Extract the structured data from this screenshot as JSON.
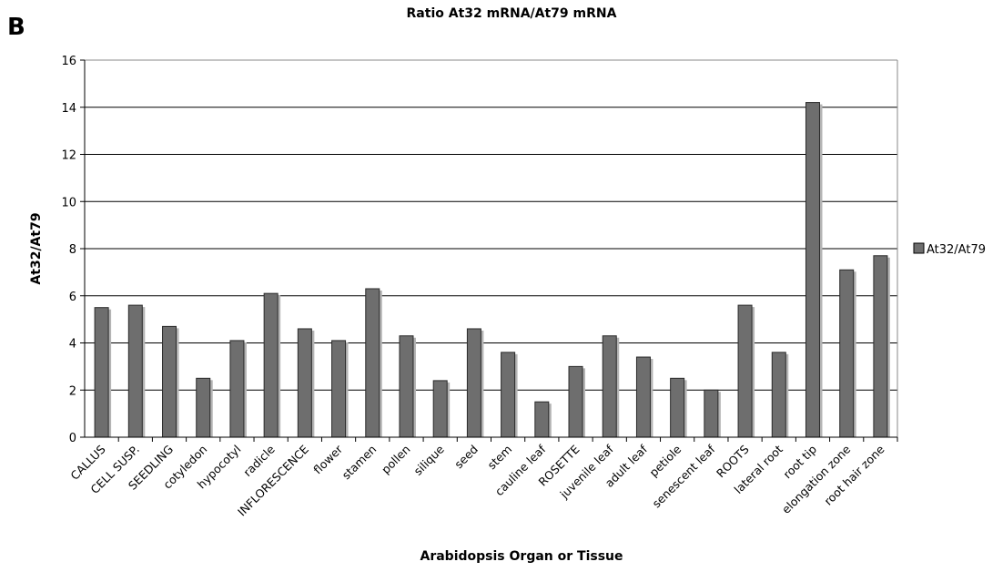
{
  "panel_label": "B",
  "chart_data": {
    "type": "bar",
    "title": "Ratio At32 mRNA/At79 mRNA",
    "xlabel": "Arabidopsis Organ or Tissue",
    "ylabel": "At32/At79",
    "ylim": [
      0,
      16
    ],
    "yticks": [
      "0",
      "2",
      "4",
      "6",
      "8",
      "10",
      "12",
      "14",
      "16"
    ],
    "grid": true,
    "legend_position": "right",
    "colors": {
      "bar": "#6e6e6e",
      "bar_shadow": "#b4b4b4",
      "grid": "#000000"
    },
    "categories": [
      "CALLUS",
      "CELL SUSP.",
      "SEEDLING",
      "cotyledon",
      "hypocotyl",
      "radicle",
      "INFLORESCENCE",
      "flower",
      "stamen",
      "pollen",
      "silique",
      "seed",
      "stem",
      "cauline leaf",
      "ROSETTE",
      "juvenile leaf",
      "adult leaf",
      "petiole",
      "senescent leaf",
      "ROOTS",
      "lateral root",
      "root tip",
      "elongation zone",
      "root hair zone"
    ],
    "series": [
      {
        "name": "At32/At79",
        "values": [
          5.5,
          5.6,
          4.7,
          2.5,
          4.1,
          6.1,
          4.6,
          4.1,
          6.3,
          4.3,
          2.4,
          4.6,
          3.6,
          1.5,
          3.0,
          4.3,
          3.4,
          2.5,
          2.0,
          5.6,
          3.6,
          14.2,
          7.1,
          7.7
        ]
      }
    ]
  }
}
